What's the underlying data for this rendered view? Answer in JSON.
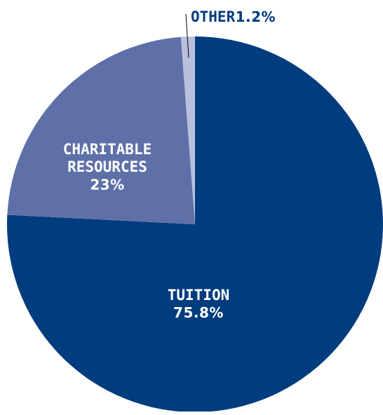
{
  "chart_data": {
    "type": "pie",
    "title": "",
    "slices": [
      {
        "name": "TUITION",
        "value": 75.8,
        "label_lines": [
          "TUITION"
        ],
        "value_label": "75.8%",
        "color": "#003C7E"
      },
      {
        "name": "CHARITABLE RESOURCES",
        "value": 23,
        "label_lines": [
          "CHARITABLE",
          "RESOURCES"
        ],
        "value_label": "23%",
        "color": "#5E70A7"
      },
      {
        "name": "OTHER",
        "value": 1.2,
        "label_lines": [
          "OTHER"
        ],
        "value_label": "1.2%",
        "color": "#B9C0DD"
      }
    ],
    "label_colors": {
      "inside": "#FFFFFF",
      "outside": "#003C7E",
      "leader_line": "#000000"
    }
  }
}
